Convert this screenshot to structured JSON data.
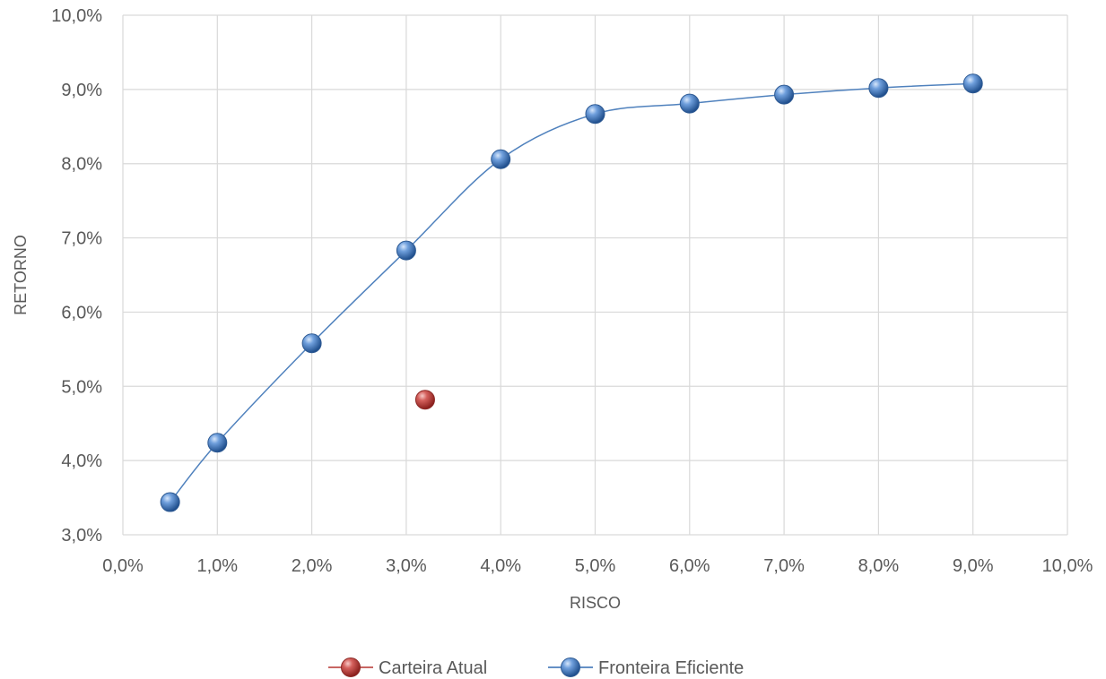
{
  "chart_data": {
    "type": "scatter",
    "title": "",
    "xlabel": "RISCO",
    "ylabel": "RETORNO",
    "xlim": [
      0,
      10
    ],
    "ylim": [
      3,
      10
    ],
    "x_ticks": [
      0,
      1,
      2,
      3,
      4,
      5,
      6,
      7,
      8,
      9,
      10
    ],
    "y_ticks": [
      3,
      4,
      5,
      6,
      7,
      8,
      9,
      10
    ],
    "tick_format": "percent, one decimal, comma separator",
    "grid": true,
    "legend_position": "bottom",
    "series": [
      {
        "name": "Carteira Atual",
        "color": "#c0504d",
        "line": false,
        "points": [
          {
            "x": 3.2,
            "y": 4.82
          }
        ]
      },
      {
        "name": "Fronteira Eficiente",
        "color": "#4f81bd",
        "line": true,
        "smooth": true,
        "points": [
          {
            "x": 0.5,
            "y": 3.44
          },
          {
            "x": 1.0,
            "y": 4.24
          },
          {
            "x": 2.0,
            "y": 5.58
          },
          {
            "x": 3.0,
            "y": 6.83
          },
          {
            "x": 4.0,
            "y": 8.06
          },
          {
            "x": 5.0,
            "y": 8.67
          },
          {
            "x": 6.0,
            "y": 8.81
          },
          {
            "x": 7.0,
            "y": 8.93
          },
          {
            "x": 8.0,
            "y": 9.02
          },
          {
            "x": 9.0,
            "y": 9.08
          }
        ]
      }
    ]
  }
}
